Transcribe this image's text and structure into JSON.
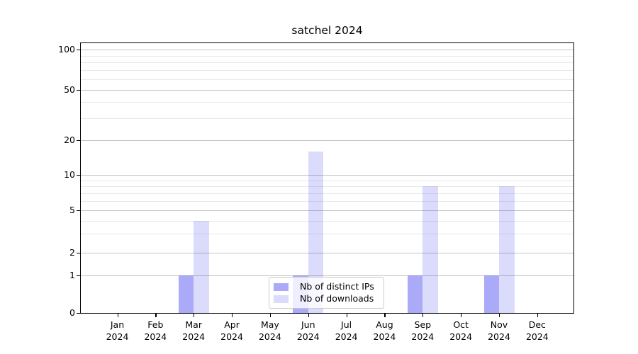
{
  "chart_data": {
    "type": "bar",
    "title": "satchel 2024",
    "categories": [
      "Jan",
      "Feb",
      "Mar",
      "Apr",
      "May",
      "Jun",
      "Jul",
      "Aug",
      "Sep",
      "Oct",
      "Nov",
      "Dec"
    ],
    "year": "2024",
    "series": [
      {
        "name": "Nb of distinct IPs",
        "color": "rgba(85,85,241,0.50)",
        "values": [
          0,
          0,
          1,
          0,
          0,
          1,
          0,
          0,
          1,
          0,
          1,
          0
        ]
      },
      {
        "name": "Nb of downloads",
        "color": "rgba(85,85,241,0.21)",
        "values": [
          0,
          0,
          4,
          0,
          0,
          16,
          0,
          0,
          8,
          0,
          8,
          0
        ]
      }
    ],
    "y_axis": {
      "scale": "symlog",
      "major_ticks": [
        0,
        1,
        2,
        5,
        10,
        20,
        50,
        100
      ],
      "minor_ticks": [
        3,
        4,
        6,
        7,
        8,
        9,
        30,
        40,
        60,
        70,
        80,
        90
      ],
      "range": [
        0,
        100
      ]
    },
    "x_axis": {
      "label_format": "month over year"
    },
    "legend": {
      "position": "lower center"
    },
    "grid": true
  },
  "colors": {
    "bar_distinct_ips_on_white": "#aaaaf8",
    "bar_downloads_on_white": "#dbdbf8",
    "major_grid": "#c3c3c3",
    "minor_grid": "#e8e8e8",
    "spine": "#000000",
    "background": "#ffffff"
  }
}
